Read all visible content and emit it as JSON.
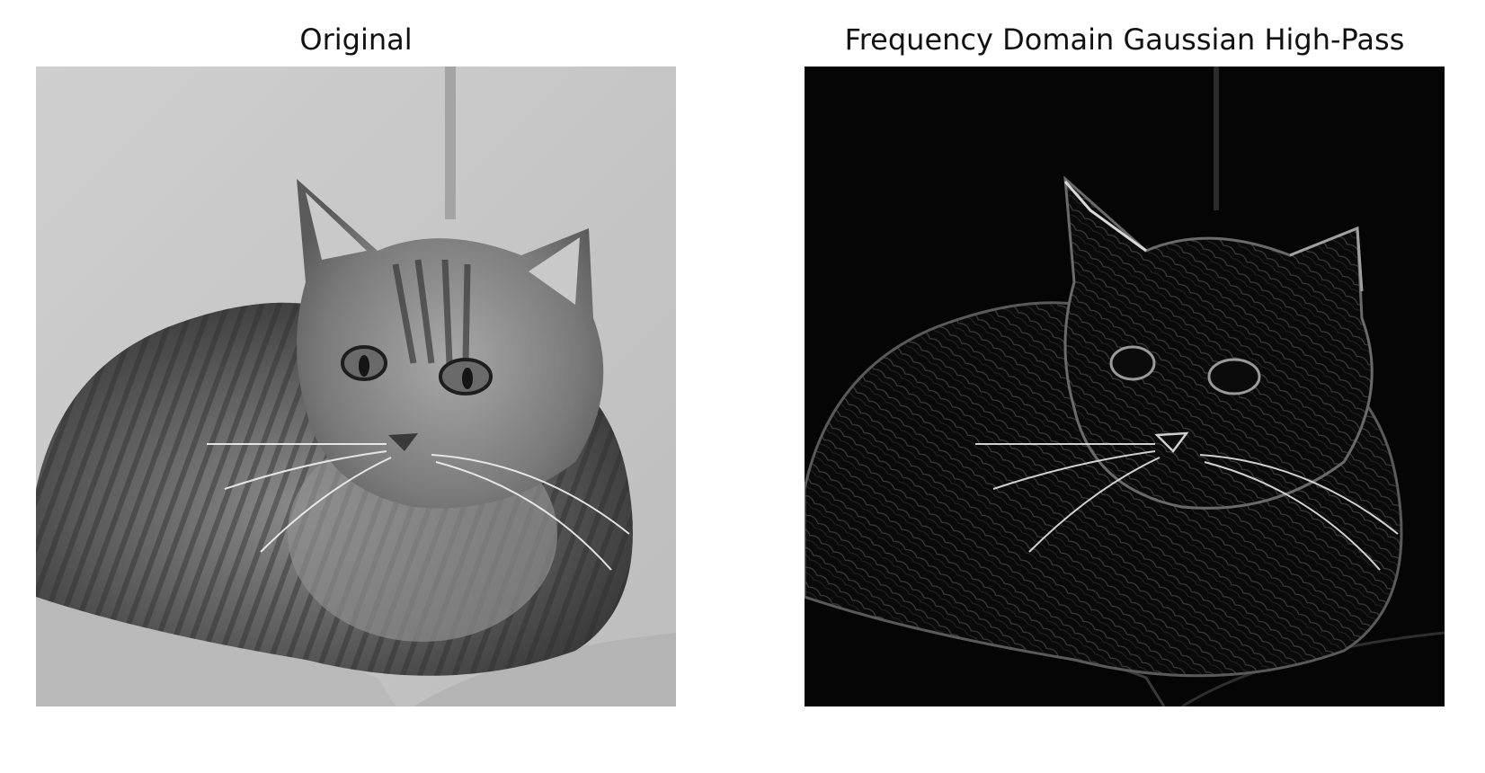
{
  "figure": {
    "panels": [
      {
        "title": "Original",
        "image": "grayscale photo of a tabby cat lying on a light gray sofa cushion",
        "tone": "normal"
      },
      {
        "title": "Frequency Domain Gaussian High-Pass",
        "image": "high-pass filtered version of the cat photo: edges and fur texture glowing white on a black background",
        "tone": "inverted-edges"
      }
    ],
    "colors": {
      "background": "#ffffff",
      "title_text": "#111111",
      "original_bg": "#c8c8c8",
      "filtered_bg": "#050505"
    }
  }
}
